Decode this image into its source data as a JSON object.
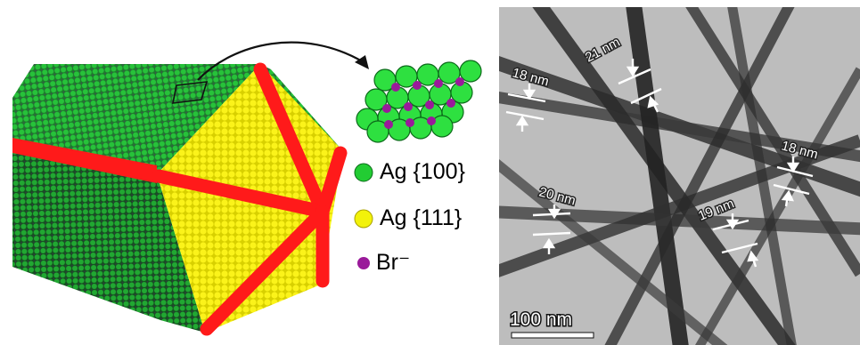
{
  "legend": {
    "ag100": {
      "label": "Ag {100}",
      "color": "#22cc33"
    },
    "ag111": {
      "label": "Ag {111}",
      "color": "#f2f20a"
    },
    "br": {
      "label": "Br⁻",
      "color": "#9a1a9a"
    }
  },
  "colors": {
    "twin_boundary": "#ff1a1a",
    "tem_background": "#bdbdbd",
    "nanowire": "#2a2a2a"
  },
  "tem": {
    "measurements": [
      "18 nm",
      "21 nm",
      "18 nm",
      "20 nm",
      "19 nm"
    ],
    "scale_bar": "100 nm"
  }
}
